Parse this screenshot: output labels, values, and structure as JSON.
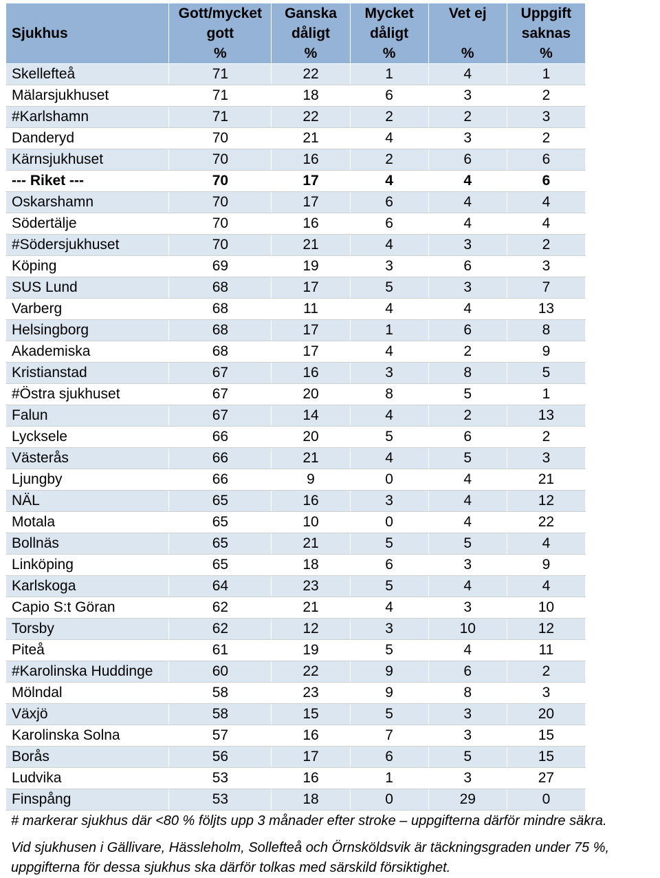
{
  "table": {
    "headers": [
      {
        "lines": [
          "Sjukhus"
        ]
      },
      {
        "lines": [
          "Gott/mycket",
          "gott",
          "%"
        ]
      },
      {
        "lines": [
          "Ganska",
          "dåligt",
          "%"
        ]
      },
      {
        "lines": [
          "Mycket",
          "dåligt",
          "%"
        ]
      },
      {
        "lines": [
          "Vet ej",
          "",
          "%"
        ]
      },
      {
        "lines": [
          "Uppgift",
          "saknas",
          "%"
        ]
      }
    ],
    "rows": [
      [
        "Skellefteå",
        "71",
        "22",
        "1",
        "4",
        "1"
      ],
      [
        "Mälarsjukhuset",
        "71",
        "18",
        "6",
        "3",
        "2"
      ],
      [
        "#Karlshamn",
        "71",
        "22",
        "2",
        "2",
        "3"
      ],
      [
        "Danderyd",
        "70",
        "21",
        "4",
        "3",
        "2"
      ],
      [
        "Kärnsjukhuset",
        "70",
        "16",
        "2",
        "6",
        "6"
      ],
      [
        "--- Riket ---",
        "70",
        "17",
        "4",
        "4",
        "6"
      ],
      [
        "Oskarshamn",
        "70",
        "17",
        "6",
        "4",
        "4"
      ],
      [
        "Södertälje",
        "70",
        "16",
        "6",
        "4",
        "4"
      ],
      [
        "#Södersjukhuset",
        "70",
        "21",
        "4",
        "3",
        "2"
      ],
      [
        "Köping",
        "69",
        "19",
        "3",
        "6",
        "3"
      ],
      [
        "SUS Lund",
        "68",
        "17",
        "5",
        "3",
        "7"
      ],
      [
        "Varberg",
        "68",
        "11",
        "4",
        "4",
        "13"
      ],
      [
        "Helsingborg",
        "68",
        "17",
        "1",
        "6",
        "8"
      ],
      [
        "Akademiska",
        "68",
        "17",
        "4",
        "2",
        "9"
      ],
      [
        "Kristianstad",
        "67",
        "16",
        "3",
        "8",
        "5"
      ],
      [
        "#Östra sjukhuset",
        "67",
        "20",
        "8",
        "5",
        "1"
      ],
      [
        "Falun",
        "67",
        "14",
        "4",
        "2",
        "13"
      ],
      [
        "Lycksele",
        "66",
        "20",
        "5",
        "6",
        "2"
      ],
      [
        "Västerås",
        "66",
        "21",
        "4",
        "5",
        "3"
      ],
      [
        "Ljungby",
        "66",
        "9",
        "0",
        "4",
        "21"
      ],
      [
        "NÄL",
        "65",
        "16",
        "3",
        "4",
        "12"
      ],
      [
        "Motala",
        "65",
        "10",
        "0",
        "4",
        "22"
      ],
      [
        "Bollnäs",
        "65",
        "21",
        "5",
        "5",
        "4"
      ],
      [
        "Linköping",
        "65",
        "18",
        "6",
        "3",
        "9"
      ],
      [
        "Karlskoga",
        "64",
        "23",
        "5",
        "4",
        "4"
      ],
      [
        "Capio S:t Göran",
        "62",
        "21",
        "4",
        "3",
        "10"
      ],
      [
        "Torsby",
        "62",
        "12",
        "3",
        "10",
        "12"
      ],
      [
        "Piteå",
        "61",
        "19",
        "5",
        "4",
        "11"
      ],
      [
        "#Karolinska Huddinge",
        "60",
        "22",
        "9",
        "6",
        "2"
      ],
      [
        "Mölndal",
        "58",
        "23",
        "9",
        "8",
        "3"
      ],
      [
        "Växjö",
        "58",
        "15",
        "5",
        "3",
        "20"
      ],
      [
        "Karolinska Solna",
        "57",
        "16",
        "7",
        "3",
        "15"
      ],
      [
        "Borås",
        "56",
        "17",
        "6",
        "5",
        "15"
      ],
      [
        "Ludvika",
        "53",
        "16",
        "1",
        "3",
        "27"
      ],
      [
        "Finspång",
        "53",
        "18",
        "0",
        "29",
        "0"
      ]
    ],
    "bold_row_label": "--- Riket ---"
  },
  "notes": {
    "line1": "# markerar sjukhus där <80 % följts upp 3 månader efter stroke – uppgifterna därför mindre säkra.",
    "line2a": "Vid sjukhusen i Gällivare, Hässleholm, Sollefteå och Örnsköldsvik är täckningsgraden under 75 %,",
    "line2b": "uppgifterna för dessa sjukhus ska därför tolkas med särskild försiktighet."
  }
}
